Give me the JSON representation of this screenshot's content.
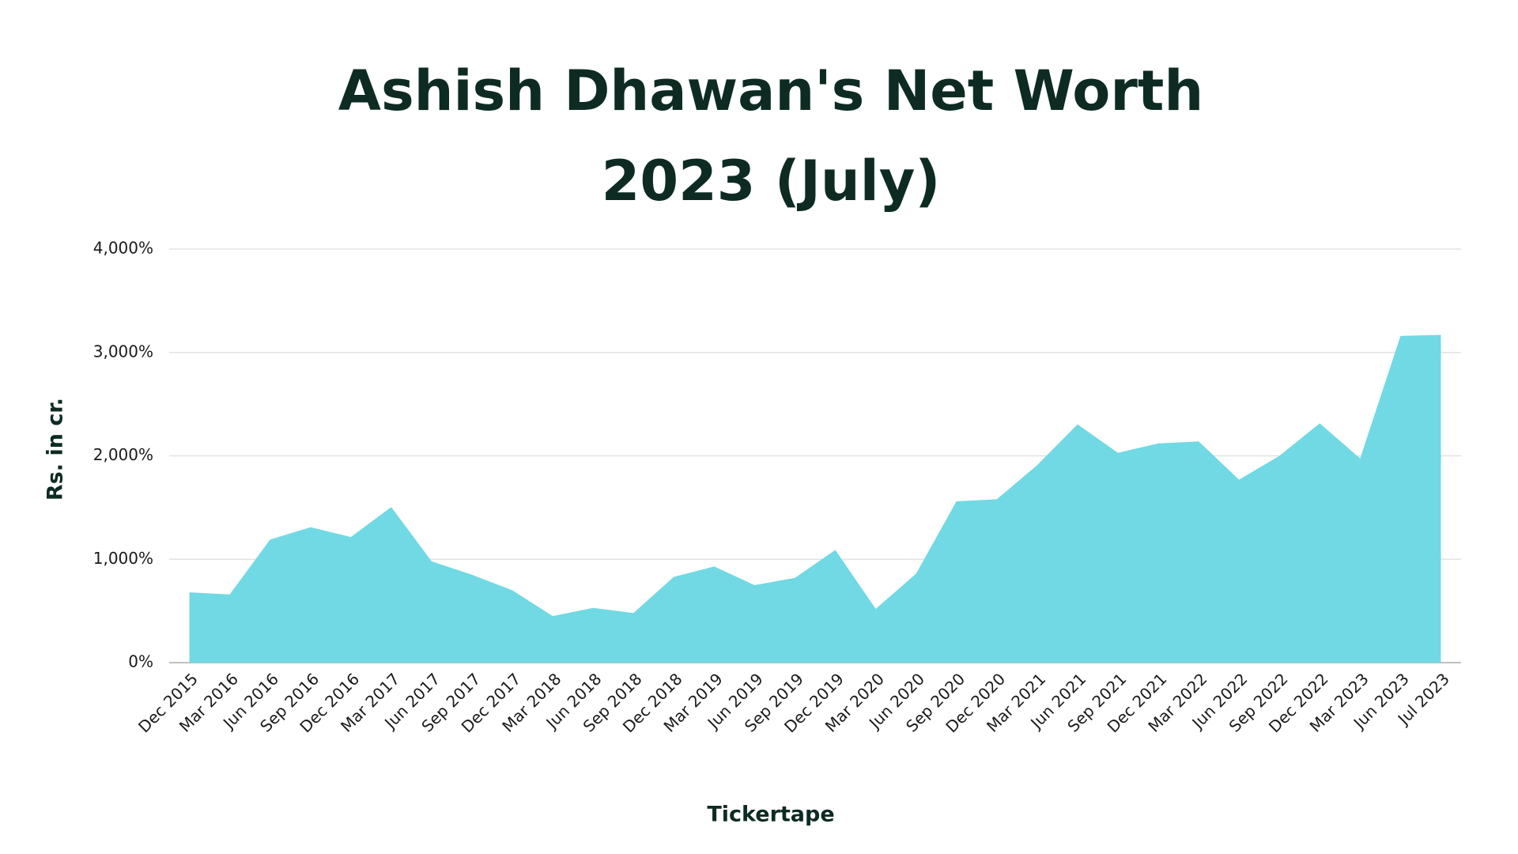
{
  "chart_data": {
    "type": "area",
    "title": [
      "Ashish Dhawan's Net Worth",
      "2023 (July)"
    ],
    "y_label": "Rs. in cr.",
    "source": "Tickertape",
    "categories": [
      "Dec 2015",
      "Mar 2016",
      "Jun 2016",
      "Sep 2016",
      "Dec 2016",
      "Mar 2017",
      "Jun 2017",
      "Sep 2017",
      "Dec 2017",
      "Mar 2018",
      "Jun 2018",
      "Sep 2018",
      "Dec 2018",
      "Mar 2019",
      "Jun 2019",
      "Sep 2019",
      "Dec 2019",
      "Mar 2020",
      "Jun 2020",
      "Sep 2020",
      "Dec 2020",
      "Mar 2021",
      "Jun 2021",
      "Sep 2021",
      "Dec 2021",
      "Mar 2022",
      "Jun 2022",
      "Sep 2022",
      "Dec 2022",
      "Mar 2023",
      "Jun 2023",
      "Jul 2023"
    ],
    "values": [
      680,
      660,
      1190,
      1310,
      1215,
      1505,
      980,
      850,
      700,
      450,
      530,
      480,
      830,
      930,
      750,
      820,
      1090,
      520,
      860,
      1560,
      1580,
      1910,
      2305,
      2030,
      2120,
      2140,
      1770,
      2000,
      2315,
      1975,
      3160,
      3170
    ],
    "color": "#70d9e4",
    "ylim": [
      0,
      4000
    ],
    "yticks": [
      {
        "value": 0,
        "label": "0%"
      },
      {
        "value": 1000,
        "label": "1,000%"
      },
      {
        "value": 2000,
        "label": "2,000%"
      },
      {
        "value": 3000,
        "label": "3,000%"
      },
      {
        "value": 4000,
        "label": "4,000%"
      }
    ],
    "grid": true
  }
}
